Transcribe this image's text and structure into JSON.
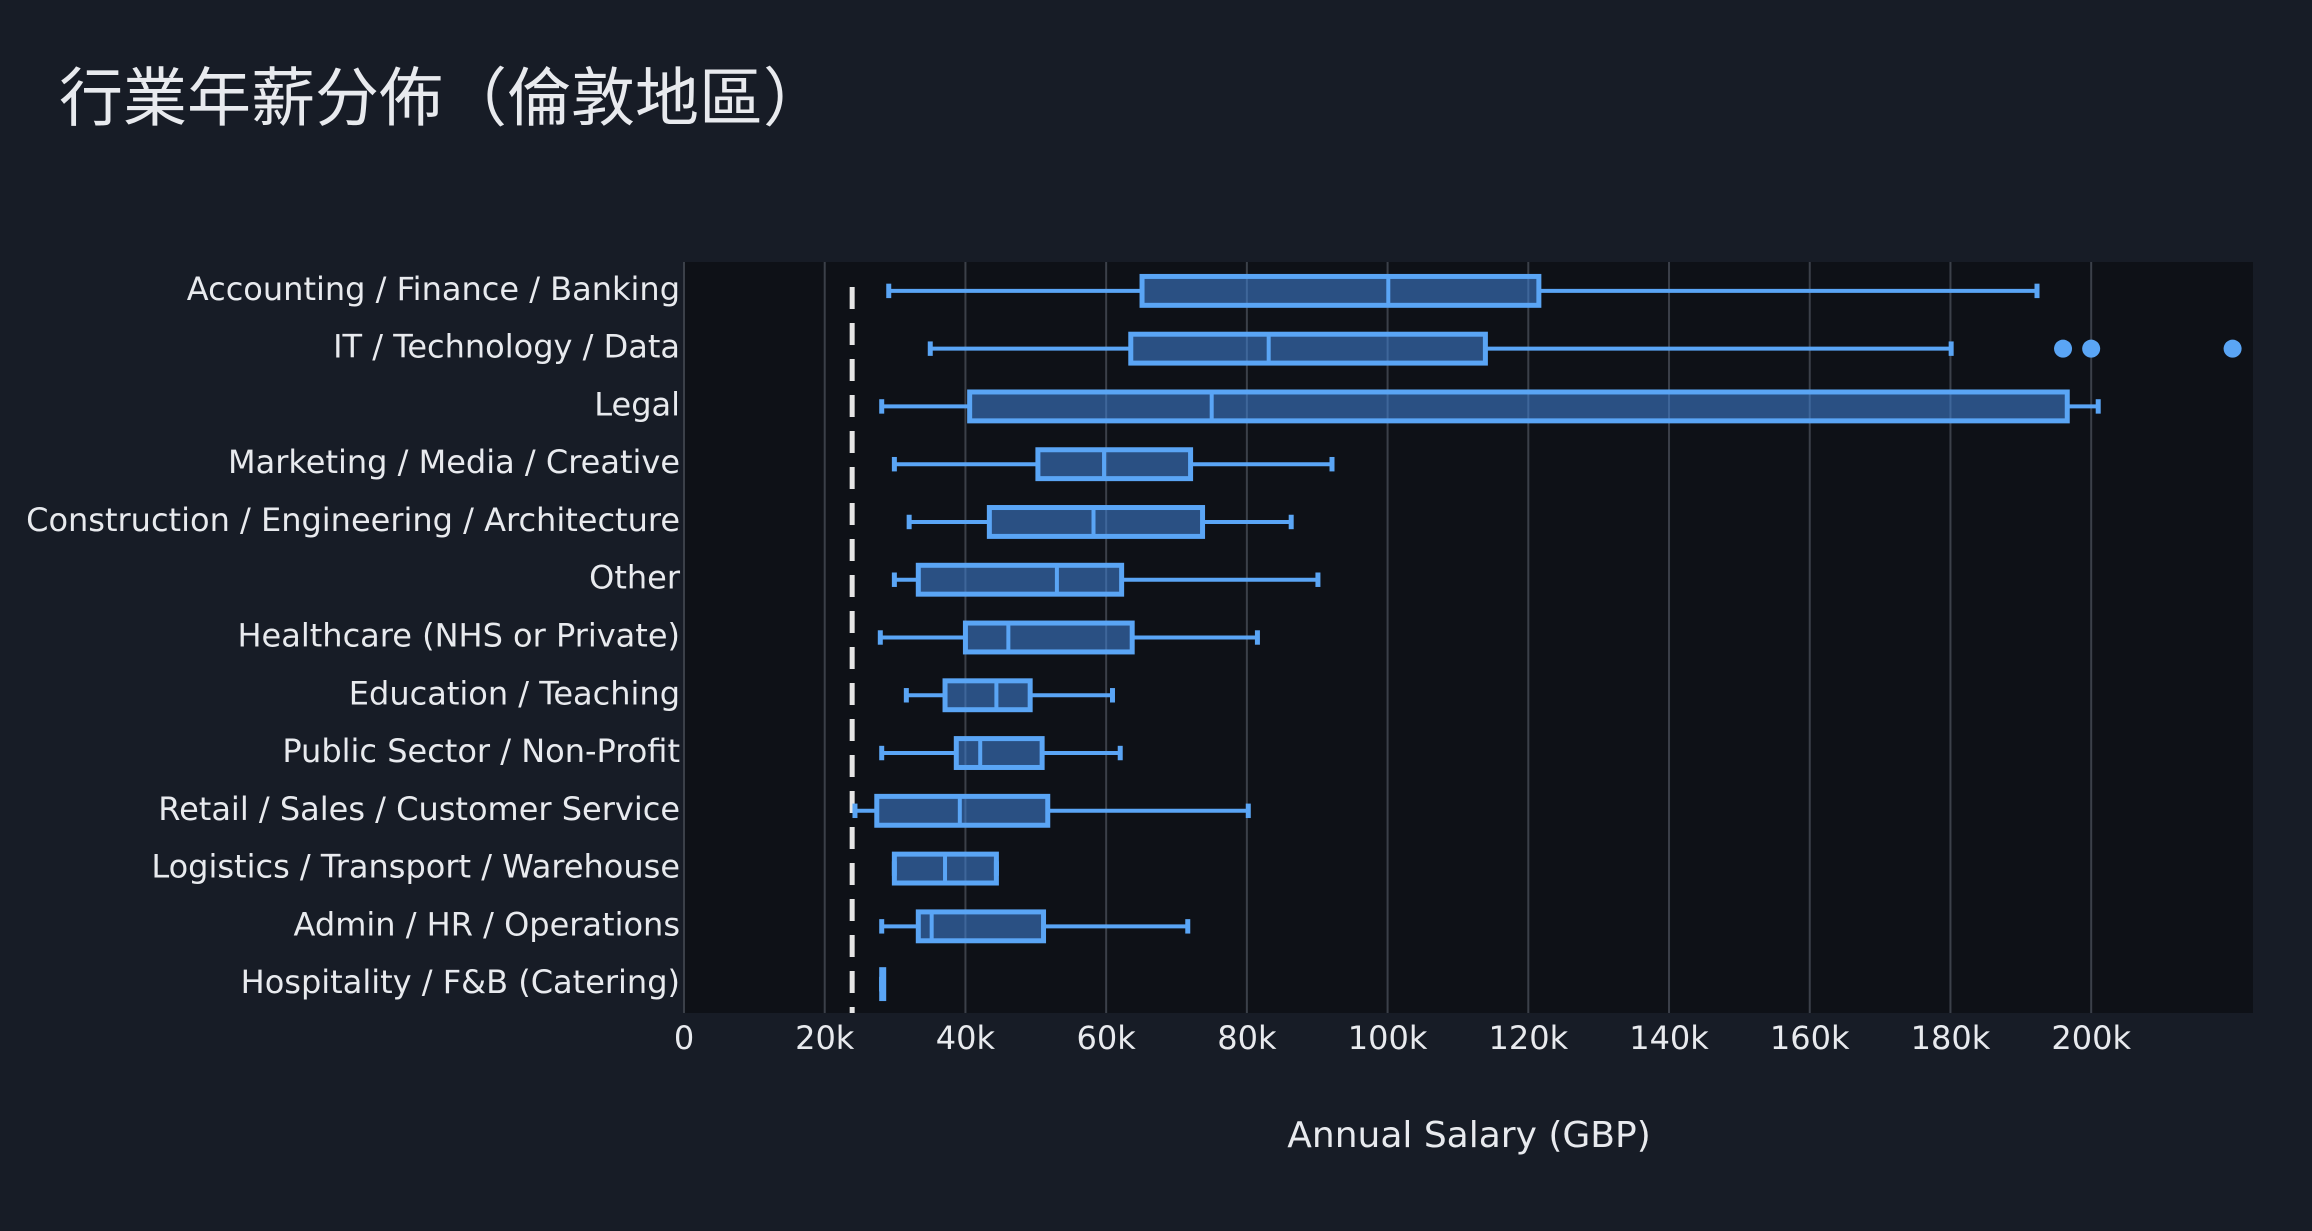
{
  "chart_data": {
    "type": "box",
    "orientation": "horizontal",
    "title": "行業年薪分佈（倫敦地區）",
    "x_label": "Annual Salary (GBP)",
    "color": "#5aa5f5",
    "reference_line": 23900,
    "categories": [
      "Accounting / Finance / Banking",
      "IT / Technology / Data",
      "Legal",
      "Marketing / Media / Creative",
      "Construction / Engineering / Architecture",
      "Other",
      "Healthcare (NHS or Private)",
      "Education / Teaching",
      "Public Sector / Non-Profit",
      "Retail / Sales / Customer Service",
      "Logistics / Transport / Warehouse",
      "Admin / HR / Operations",
      "Hospitality / F&B (Catering)"
    ],
    "boxes": [
      {
        "min": 29100,
        "q1": 65100,
        "median": 100100,
        "q3": 121500,
        "max": 192300
      },
      {
        "min": 35000,
        "q1": 63500,
        "median": 83100,
        "q3": 113900,
        "max": 180100,
        "outliers": [
          196000,
          200000,
          220100
        ]
      },
      {
        "min": 28100,
        "q1": 40600,
        "median": 75000,
        "q3": 196600,
        "max": 201000
      },
      {
        "min": 29900,
        "q1": 50300,
        "median": 59700,
        "q3": 72000,
        "max": 92100
      },
      {
        "min": 32000,
        "q1": 43400,
        "median": 58200,
        "q3": 73700,
        "max": 86300
      },
      {
        "min": 29900,
        "q1": 33300,
        "median": 53000,
        "q3": 62200,
        "max": 90100
      },
      {
        "min": 27900,
        "q1": 40000,
        "median": 46100,
        "q3": 63700,
        "max": 81500
      },
      {
        "min": 31600,
        "q1": 37100,
        "median": 44400,
        "q3": 49200,
        "max": 60900
      },
      {
        "min": 28100,
        "q1": 38700,
        "median": 42100,
        "q3": 50900,
        "max": 62000
      },
      {
        "min": 24300,
        "q1": 27400,
        "median": 39200,
        "q3": 51700,
        "max": 80200
      },
      {
        "min": 29900,
        "q1": 29900,
        "median": 37100,
        "q3": 44400,
        "max": 44400
      },
      {
        "min": 28100,
        "q1": 33300,
        "median": 35200,
        "q3": 51100,
        "max": 71600
      },
      {
        "min": 28100,
        "q1": 28100,
        "median": 28100,
        "q3": 28100,
        "max": 28100
      }
    ],
    "xlim": [
      0,
      223000
    ],
    "xticks": [
      0,
      {
        "value": 20000,
        "label": "20k"
      },
      {
        "value": 40000,
        "label": "40k"
      },
      {
        "value": 60000,
        "label": "60k"
      },
      {
        "value": 80000,
        "label": "80k"
      },
      {
        "value": 100000,
        "label": "100k"
      },
      {
        "value": 120000,
        "label": "120k"
      },
      {
        "value": 140000,
        "label": "140k"
      },
      {
        "value": 160000,
        "label": "160k"
      },
      {
        "value": 180000,
        "label": "180k"
      },
      {
        "value": 200000,
        "label": "200k"
      }
    ],
    "grid": true
  }
}
